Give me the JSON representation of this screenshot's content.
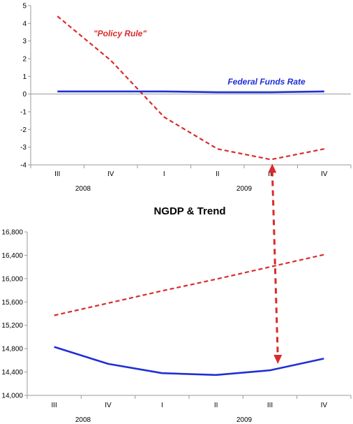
{
  "chart_data": [
    {
      "type": "line",
      "title": "",
      "xlabel": "",
      "ylabel": "",
      "ylim": [
        -4,
        5
      ],
      "yticks": [
        "5",
        "4",
        "3",
        "2",
        "1",
        "0",
        "-1",
        "-2",
        "-3",
        "-4"
      ],
      "categories": [
        "III",
        "IV",
        "I",
        "II",
        "III",
        "IV"
      ],
      "year_labels": [
        "2008",
        "2009"
      ],
      "series": [
        {
          "name": "\"Policy Rule\"",
          "color": "#d92b2b",
          "style": "dashed",
          "values": [
            4.4,
            1.9,
            -1.3,
            -3.1,
            -3.7,
            -3.1
          ]
        },
        {
          "name": "Federal Funds Rate",
          "color": "#1f2fd6",
          "style": "solid",
          "values": [
            0.15,
            0.15,
            0.15,
            0.1,
            0.1,
            0.15
          ]
        }
      ]
    },
    {
      "type": "line",
      "title": "NGDP & Trend",
      "xlabel": "",
      "ylabel": "",
      "ylim": [
        14000,
        16800
      ],
      "yticks": [
        "16,800",
        "16,400",
        "16,000",
        "15,600",
        "15,200",
        "14,800",
        "14,400",
        "14,000"
      ],
      "categories": [
        "III",
        "IV",
        "I",
        "II",
        "III",
        "IV"
      ],
      "year_labels": [
        "2008",
        "2009"
      ],
      "series": [
        {
          "color": "#d92b2b",
          "style": "dashed",
          "values": [
            15370,
            15580,
            15790,
            15990,
            16200,
            16410
          ]
        },
        {
          "color": "#1f2fd6",
          "style": "solid",
          "values": [
            14830,
            14540,
            14380,
            14350,
            14430,
            14630
          ]
        }
      ]
    }
  ],
  "annotation": {
    "color": "#d92b2b",
    "from_chart": 0,
    "to_chart": 1,
    "category_index": 4
  }
}
